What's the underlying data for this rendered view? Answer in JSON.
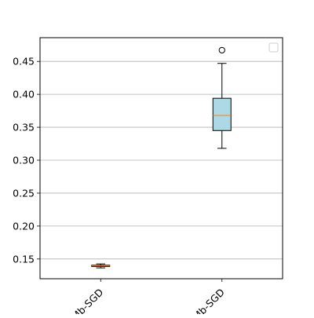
{
  "chart_data": {
    "type": "box",
    "title": "",
    "xlabel": "",
    "ylabel": "",
    "categories": [
      "Mb-SGD",
      "Mb-SGD"
    ],
    "ylim": [
      0.12,
      0.486
    ],
    "yticks": [
      0.15,
      0.2,
      0.25,
      0.3,
      0.35,
      0.4,
      0.45
    ],
    "ytick_labels": [
      "0.15",
      "0.20",
      "0.25",
      "0.30",
      "0.35",
      "0.40",
      "0.45"
    ],
    "grid": "y",
    "legend": "top-right (empty)",
    "boxes": [
      {
        "category": "Mb-SGD",
        "whisker_low": 0.1365,
        "q1": 0.1385,
        "median": 0.1395,
        "q3": 0.1405,
        "whisker_high": 0.1425,
        "outliers": []
      },
      {
        "category": "Mb-SGD",
        "whisker_low": 0.318,
        "q1": 0.345,
        "median": 0.368,
        "q3": 0.394,
        "whisker_high": 0.447,
        "outliers": [
          0.467
        ]
      }
    ],
    "colors": {
      "box_fill": "#add8e6",
      "median": "#ff7f0e",
      "edge": "#000000",
      "grid": "#b0b0b0"
    }
  }
}
